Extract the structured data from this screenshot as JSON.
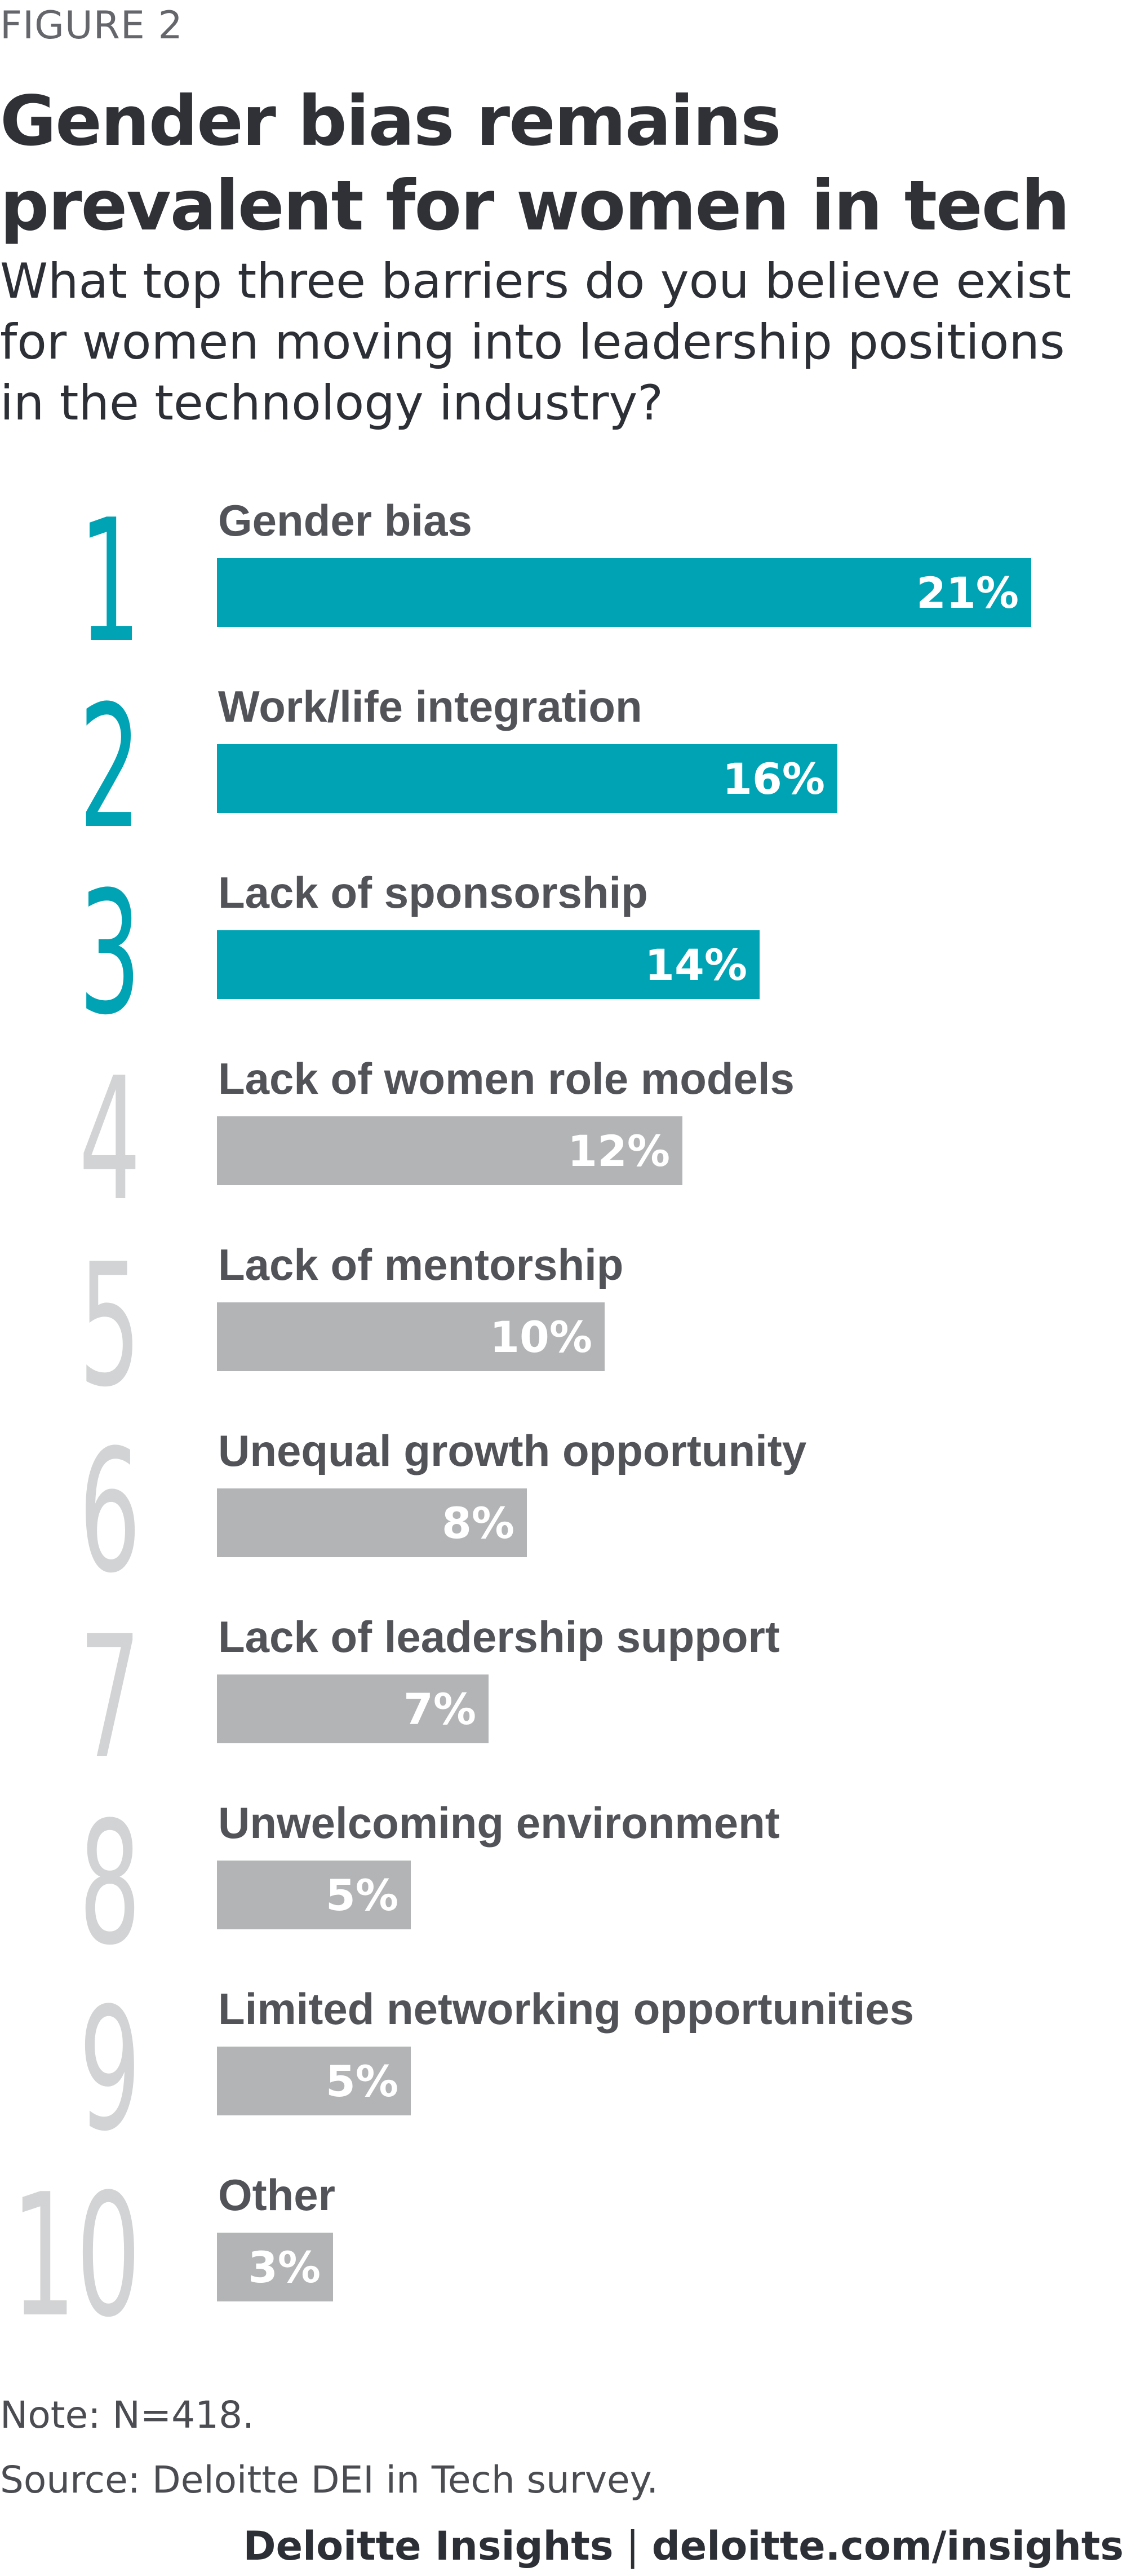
{
  "figure_label": "FIGURE 2",
  "title": "Gender bias remains prevalent for women in tech",
  "subtitle": "What top three barriers do you believe exist for women moving into leadership positions in the technology industry?",
  "note": "Note: N=418.",
  "source": "Source: Deloitte DEI in Tech survey.",
  "credit": {
    "brand": "Deloitte Insights",
    "separator": "|",
    "url": "deloitte.com/insights"
  },
  "colors": {
    "highlight": "#00a3b4",
    "default_bar": "#b2b4b6",
    "highlight_rank": "#00a3b4",
    "default_rank": "#d2d3d4"
  },
  "chart_data": {
    "type": "bar",
    "orientation": "horizontal",
    "value_unit": "%",
    "highlighted_top": 3,
    "ranks": [
      "1",
      "2",
      "3",
      "4",
      "5",
      "6",
      "7",
      "8",
      "9",
      "10"
    ],
    "categories": [
      "Gender bias",
      "Work/life integration",
      "Lack of sponsorship",
      "Lack of women role models",
      "Lack of mentorship",
      "Unequal growth opportunity",
      "Lack of leadership support",
      "Unwelcoming environment",
      "Limited networking opportunities",
      "Other"
    ],
    "values": [
      21,
      16,
      14,
      12,
      10,
      8,
      7,
      5,
      5,
      3
    ],
    "value_labels": [
      "21%",
      "16%",
      "14%",
      "12%",
      "10%",
      "8%",
      "7%",
      "5%",
      "5%",
      "3%"
    ],
    "xlim": [
      0,
      21
    ]
  }
}
